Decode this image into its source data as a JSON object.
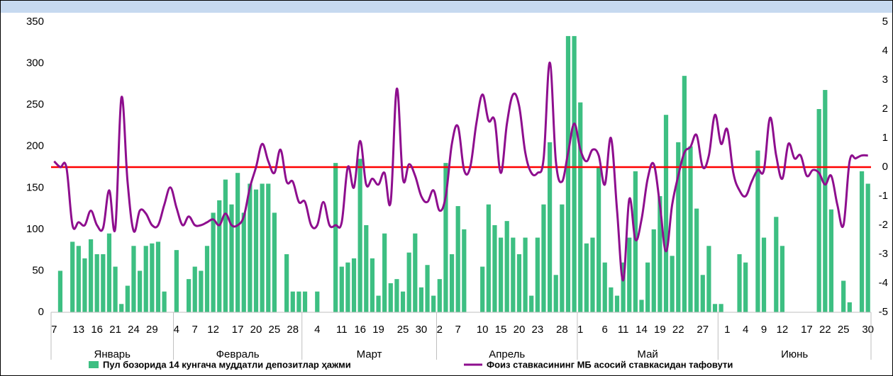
{
  "chart_data": {
    "type": "bar_line",
    "categories": [
      "7",
      null,
      null,
      null,
      "13",
      null,
      null,
      "16",
      null,
      null,
      "21",
      null,
      null,
      "24",
      null,
      null,
      "29",
      null,
      null,
      null,
      "4",
      null,
      null,
      "7",
      null,
      null,
      "12",
      null,
      null,
      null,
      "17",
      null,
      null,
      "20",
      null,
      null,
      "25",
      null,
      null,
      "28",
      null,
      null,
      null,
      "4",
      null,
      null,
      null,
      "11",
      null,
      null,
      "16",
      null,
      null,
      "19",
      null,
      null,
      null,
      "25",
      null,
      null,
      "30",
      null,
      null,
      "2",
      null,
      null,
      "7",
      null,
      null,
      null,
      "10",
      null,
      null,
      "15",
      null,
      null,
      "20",
      null,
      null,
      "23",
      null,
      null,
      null,
      "28",
      null,
      null,
      "1",
      null,
      null,
      null,
      "6",
      null,
      null,
      "11",
      null,
      null,
      "14",
      null,
      null,
      "19",
      null,
      null,
      "22",
      null,
      null,
      null,
      "27",
      null,
      null,
      null,
      "1",
      null,
      null,
      "4",
      null,
      null,
      "9",
      null,
      null,
      "12",
      null,
      null,
      null,
      "17",
      null,
      null,
      "22",
      null,
      null,
      "25",
      null,
      null,
      null,
      "30"
    ],
    "months": [
      {
        "label": "Январь",
        "count": 20
      },
      {
        "label": "Февраль",
        "count": 21
      },
      {
        "label": "Март",
        "count": 22
      },
      {
        "label": "Апрель",
        "count": 23
      },
      {
        "label": "Май",
        "count": 23
      },
      {
        "label": "Июнь",
        "count": 25
      }
    ],
    "series": [
      {
        "name": "Пул бозорида 14 кунгача муддатли депозитлар ҳажми",
        "type": "bar",
        "color": "#3dbf82",
        "values": [
          null,
          50,
          null,
          85,
          80,
          65,
          88,
          70,
          70,
          95,
          55,
          10,
          32,
          80,
          50,
          80,
          83,
          85,
          25,
          null,
          75,
          null,
          40,
          55,
          50,
          80,
          120,
          135,
          160,
          130,
          168,
          120,
          155,
          148,
          155,
          155,
          120,
          null,
          70,
          25,
          25,
          25,
          null,
          25,
          null,
          null,
          180,
          55,
          60,
          65,
          185,
          105,
          65,
          20,
          95,
          35,
          40,
          25,
          72,
          95,
          30,
          57,
          20,
          40,
          180,
          70,
          128,
          100,
          null,
          null,
          55,
          130,
          105,
          90,
          110,
          90,
          70,
          90,
          20,
          90,
          130,
          205,
          45,
          130,
          333,
          333,
          253,
          83,
          90,
          175,
          60,
          30,
          20,
          60,
          90,
          170,
          15,
          60,
          100,
          140,
          238,
          68,
          205,
          285,
          200,
          125,
          45,
          80,
          10,
          10,
          null,
          null,
          70,
          60,
          null,
          195,
          90,
          null,
          115,
          80,
          null,
          null,
          null,
          null,
          null,
          245,
          268,
          124,
          null,
          38,
          12,
          null,
          170,
          155
        ]
      },
      {
        "name": "Фоиз ставкасининг МБ асосий ставкасидан тафовути",
        "type": "line",
        "axis": "y2",
        "color": "#8e0e8e",
        "values": [
          0.2,
          0,
          0,
          -2,
          -1.9,
          -2,
          -1.5,
          -2,
          -2.1,
          -0.8,
          -2.1,
          2.4,
          -0.5,
          -2.2,
          -1.5,
          -1.6,
          -2,
          -2,
          -1.3,
          -0.7,
          -1.4,
          -2,
          -1.7,
          -2,
          -2,
          -1.9,
          -1.8,
          -2,
          -1.6,
          -2,
          -2,
          -1.7,
          -0.7,
          0,
          0.8,
          0.2,
          -0.2,
          0.6,
          -0.5,
          -0.5,
          -1.2,
          -1.2,
          -2,
          -2,
          -1.2,
          -2,
          -2,
          -1.9,
          0,
          -0.7,
          0.9,
          -0.6,
          -0.4,
          -0.6,
          -0.2,
          -1.2,
          2.7,
          -0.4,
          0.1,
          -0.3,
          -1,
          -1.2,
          -0.8,
          -1.5,
          -1,
          0.8,
          1.4,
          -0.1,
          0,
          1.5,
          2.5,
          1.6,
          1.6,
          -0.2,
          1.5,
          2.5,
          2.1,
          0.5,
          -0.2,
          -0.2,
          0.3,
          3.6,
          0.2,
          -0.5,
          0.5,
          1.5,
          0.6,
          0.2,
          0.6,
          0.4,
          -0.6,
          1,
          -1.5,
          -3.9,
          -1.1,
          -2.5,
          -1.8,
          -0.4,
          0.1,
          -1.3,
          -2.9,
          -1.3,
          -0.3,
          0.5,
          0.7,
          1.1,
          0,
          0.4,
          1.8,
          0.8,
          1.3,
          -0.2,
          -0.8,
          -1,
          -0.5,
          -0.1,
          -0.1,
          1.7,
          0.4,
          -0.4,
          0.8,
          0.3,
          0.4,
          -0.3,
          -0.1,
          -0.2,
          -0.6,
          -0.3,
          -1.3,
          -2,
          0.2,
          0.3,
          0.4,
          0.4
        ]
      }
    ],
    "ylim": [
      0,
      350
    ],
    "yticks": [
      0,
      50,
      100,
      150,
      200,
      250,
      300,
      350
    ],
    "y2lim": [
      -5,
      5
    ],
    "y2ticks": [
      -5,
      -4,
      -3,
      -2,
      -1,
      0,
      1,
      2,
      3,
      4,
      5
    ],
    "reference_line": {
      "value": 0,
      "axis": "y2",
      "color": "#ff0000"
    },
    "grid": false
  }
}
